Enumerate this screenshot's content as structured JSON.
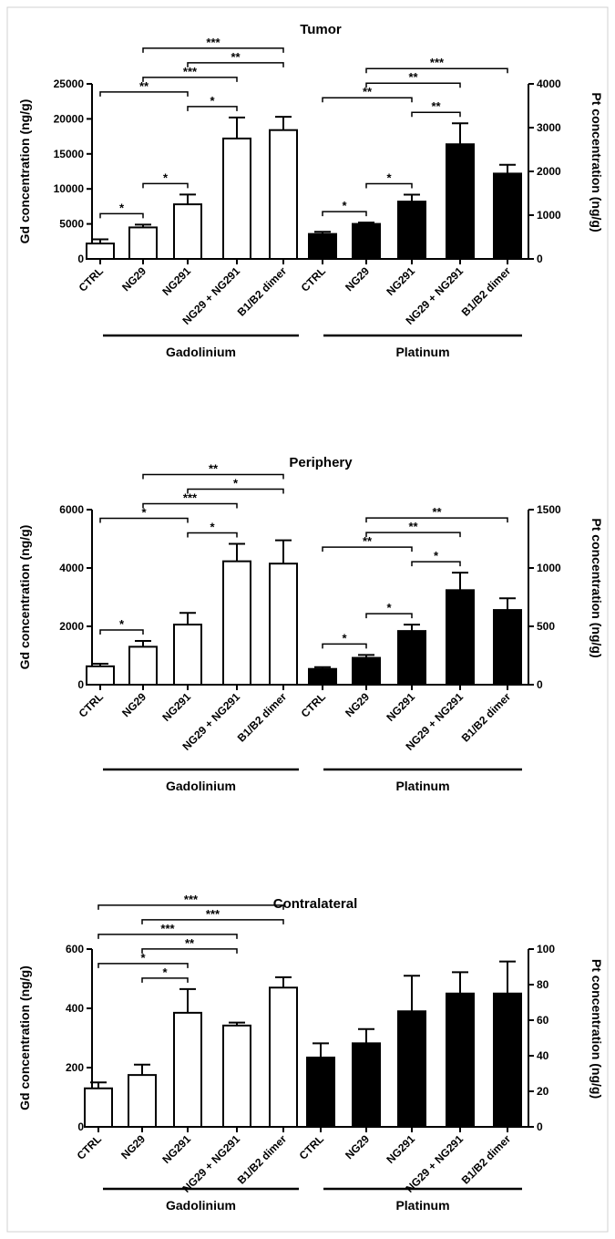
{
  "chart_data": [
    {
      "type": "bar",
      "title": "Tumor",
      "ylabel_left": "Gd concentration (ng/g)",
      "ylabel_right": "Pt concentration (ng/g)",
      "left_ticks": [
        "0",
        "5000",
        "10000",
        "15000",
        "20000",
        "25000"
      ],
      "right_ticks": [
        "0",
        "1000",
        "2000",
        "3000",
        "4000"
      ],
      "ylim_left": [
        0,
        25000
      ],
      "ylim_right": [
        0,
        4000
      ],
      "groups": [
        {
          "name": "Gadolinium",
          "fill": "#ffffff",
          "categories": [
            "CTRL",
            "NG29",
            "NG291",
            "NG29 + NG291",
            "B1/B2 dimer"
          ],
          "values": [
            2200,
            4500,
            7800,
            17200,
            18400
          ],
          "errors": [
            600,
            400,
            1400,
            3000,
            1900
          ]
        },
        {
          "name": "Platinum",
          "fill": "#000000",
          "categories": [
            "CTRL",
            "NG29",
            "NG291",
            "NG29 + NG291",
            "B1/B2 dimer"
          ],
          "values": [
            570,
            800,
            1310,
            2620,
            1950
          ],
          "errors": [
            50,
            30,
            160,
            480,
            200
          ]
        }
      ],
      "significance": [
        {
          "group": "Gadolinium",
          "from": 0,
          "to": 1,
          "label": "*"
        },
        {
          "group": "Gadolinium",
          "from": 0,
          "to": 2,
          "label": "**"
        },
        {
          "group": "Gadolinium",
          "from": 1,
          "to": 2,
          "label": "*"
        },
        {
          "group": "Gadolinium",
          "from": 2,
          "to": 3,
          "label": "*"
        },
        {
          "group": "Gadolinium",
          "from": 2,
          "to": 4,
          "label": "**"
        },
        {
          "group": "Gadolinium",
          "from": 1,
          "to": 3,
          "label": "***"
        },
        {
          "group": "Gadolinium",
          "from": 1,
          "to": 4,
          "label": "***"
        },
        {
          "group": "Platinum",
          "from": 0,
          "to": 1,
          "label": "*"
        },
        {
          "group": "Platinum",
          "from": 0,
          "to": 2,
          "label": "**"
        },
        {
          "group": "Platinum",
          "from": 1,
          "to": 2,
          "label": "*"
        },
        {
          "group": "Platinum",
          "from": 2,
          "to": 3,
          "label": "**"
        },
        {
          "group": "Platinum",
          "from": 1,
          "to": 3,
          "label": "**"
        },
        {
          "group": "Platinum",
          "from": 1,
          "to": 4,
          "label": "***"
        }
      ]
    },
    {
      "type": "bar",
      "title": "Periphery",
      "ylabel_left": "Gd concentration (ng/g)",
      "ylabel_right": "Pt concentration (ng/g)",
      "left_ticks": [
        "0",
        "2000",
        "4000",
        "6000"
      ],
      "right_ticks": [
        "0",
        "500",
        "1000",
        "1500"
      ],
      "ylim_left": [
        0,
        6000
      ],
      "ylim_right": [
        0,
        1500
      ],
      "groups": [
        {
          "name": "Gadolinium",
          "fill": "#ffffff",
          "categories": [
            "CTRL",
            "NG29",
            "NG291",
            "NG29 + NG291",
            "B1/B2 dimer"
          ],
          "values": [
            630,
            1300,
            2060,
            4230,
            4150
          ],
          "errors": [
            90,
            200,
            400,
            600,
            800
          ]
        },
        {
          "name": "Platinum",
          "fill": "#000000",
          "categories": [
            "CTRL",
            "NG29",
            "NG291",
            "NG29 + NG291",
            "B1/B2 dimer"
          ],
          "values": [
            135,
            230,
            460,
            810,
            640
          ],
          "errors": [
            15,
            25,
            55,
            150,
            100
          ]
        }
      ],
      "significance": [
        {
          "group": "Gadolinium",
          "from": 0,
          "to": 1,
          "label": "*"
        },
        {
          "group": "Gadolinium",
          "from": 0,
          "to": 2,
          "label": "*"
        },
        {
          "group": "Gadolinium",
          "from": 2,
          "to": 3,
          "label": "*"
        },
        {
          "group": "Gadolinium",
          "from": 2,
          "to": 4,
          "label": "*"
        },
        {
          "group": "Gadolinium",
          "from": 1,
          "to": 3,
          "label": "***"
        },
        {
          "group": "Gadolinium",
          "from": 1,
          "to": 4,
          "label": "**"
        },
        {
          "group": "Platinum",
          "from": 0,
          "to": 1,
          "label": "*"
        },
        {
          "group": "Platinum",
          "from": 0,
          "to": 2,
          "label": "**"
        },
        {
          "group": "Platinum",
          "from": 1,
          "to": 2,
          "label": "*"
        },
        {
          "group": "Platinum",
          "from": 2,
          "to": 3,
          "label": "*"
        },
        {
          "group": "Platinum",
          "from": 1,
          "to": 3,
          "label": "**"
        },
        {
          "group": "Platinum",
          "from": 1,
          "to": 4,
          "label": "**"
        }
      ]
    },
    {
      "type": "bar",
      "title": "Contralateral",
      "ylabel_left": "Gd concentration (ng/g)",
      "ylabel_right": "Pt concentration (ng/g)",
      "left_ticks": [
        "0",
        "200",
        "400",
        "600"
      ],
      "right_ticks": [
        "0",
        "20",
        "40",
        "60",
        "80",
        "100"
      ],
      "ylim_left": [
        0,
        600
      ],
      "ylim_right": [
        0,
        100
      ],
      "groups": [
        {
          "name": "Gadolinium",
          "fill": "#ffffff",
          "categories": [
            "CTRL",
            "NG29",
            "NG291",
            "NG29 + NG291",
            "B1/B2 dimer"
          ],
          "values": [
            130,
            175,
            385,
            342,
            470
          ],
          "errors": [
            20,
            35,
            80,
            10,
            35
          ]
        },
        {
          "name": "Platinum",
          "fill": "#000000",
          "categories": [
            "CTRL",
            "NG29",
            "NG291",
            "NG29 + NG291",
            "B1/B2 dimer"
          ],
          "values": [
            39,
            47,
            65,
            75,
            75
          ],
          "errors": [
            8,
            8,
            20,
            12,
            18
          ]
        }
      ],
      "significance": [
        {
          "group": "Gadolinium",
          "from": 0,
          "to": 2,
          "label": "*"
        },
        {
          "group": "Gadolinium",
          "from": 0,
          "to": 3,
          "label": "***"
        },
        {
          "group": "Gadolinium",
          "from": 0,
          "to": 4,
          "label": "***"
        },
        {
          "group": "Gadolinium",
          "from": 1,
          "to": 2,
          "label": "*"
        },
        {
          "group": "Gadolinium",
          "from": 1,
          "to": 3,
          "label": "**"
        },
        {
          "group": "Gadolinium",
          "from": 1,
          "to": 4,
          "label": "***"
        }
      ]
    }
  ]
}
